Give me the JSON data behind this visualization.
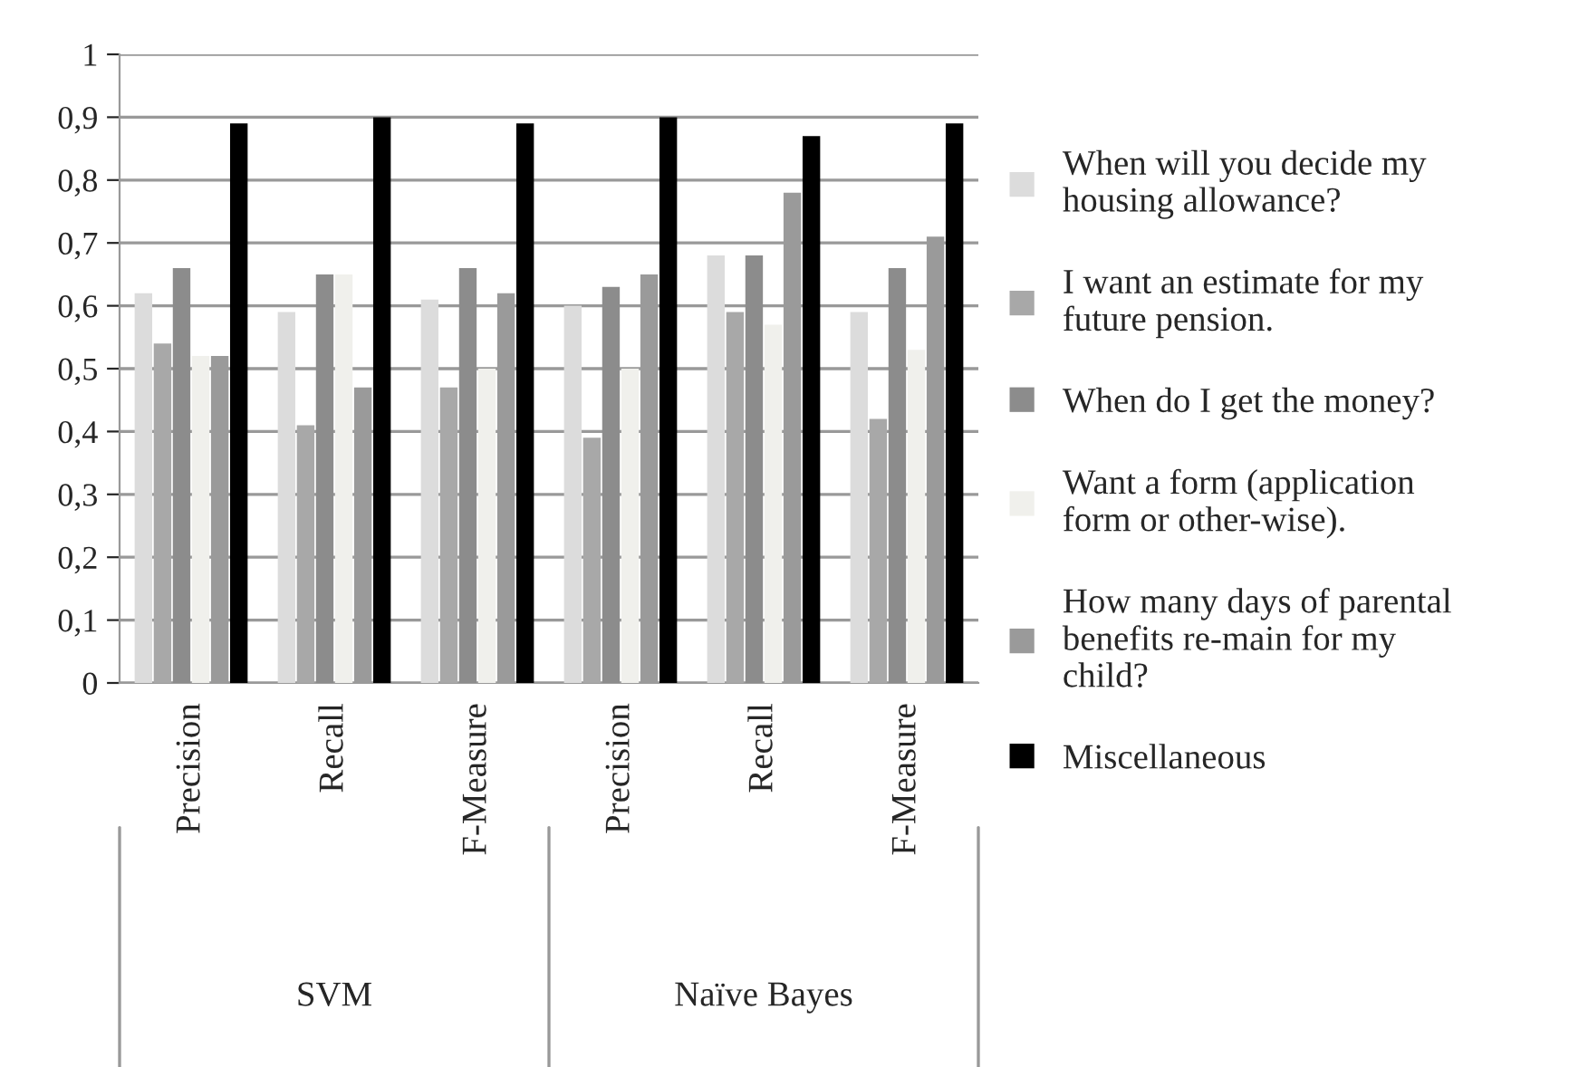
{
  "chart_data": {
    "type": "bar",
    "categories": [
      "Precision",
      "Recall",
      "F-Measure",
      "Precision",
      "Recall",
      "F-Measure"
    ],
    "annotations": [
      "SVM",
      "Naïve Bayes"
    ],
    "series": [
      {
        "name": "When will you decide my housing allowance?",
        "color": "#dcdcdc",
        "values": [
          0.62,
          0.59,
          0.61,
          0.6,
          0.68,
          0.59
        ]
      },
      {
        "name": "I want an estimate for my future pension.",
        "color": "#a8a8a8",
        "values": [
          0.54,
          0.41,
          0.47,
          0.39,
          0.59,
          0.42
        ]
      },
      {
        "name": "When do I get the money?",
        "color": "#8c8c8c",
        "values": [
          0.66,
          0.65,
          0.66,
          0.63,
          0.68,
          0.66
        ]
      },
      {
        "name": "Want a form (application form or other-wise).",
        "color": "#f0f0ec",
        "values": [
          0.52,
          0.65,
          0.5,
          0.5,
          0.57,
          0.53
        ]
      },
      {
        "name": "How many days of parental benefits re-main for my child?",
        "color": "#9a9a9a",
        "values": [
          0.52,
          0.47,
          0.62,
          0.65,
          0.78,
          0.71
        ]
      },
      {
        "name": "Miscellaneous",
        "color": "#000000",
        "values": [
          0.89,
          0.9,
          0.89,
          0.9,
          0.87,
          0.89
        ]
      }
    ],
    "ylim": [
      0,
      1
    ],
    "yticks": [
      0,
      {
        "value": 0.1,
        "label": "0,1"
      },
      {
        "value": 0.2,
        "label": "0,2"
      },
      {
        "value": 0.3,
        "label": "0,3"
      },
      {
        "value": 0.4,
        "label": "0,4"
      },
      {
        "value": 0.5,
        "label": "0,5"
      },
      {
        "value": 0.6,
        "label": "0,6"
      },
      {
        "value": 0.7,
        "label": "0,7"
      },
      {
        "value": 0.8,
        "label": "0,8"
      },
      {
        "value": 0.9,
        "label": "0,9"
      },
      1
    ],
    "grid": "y",
    "legend": "right"
  }
}
